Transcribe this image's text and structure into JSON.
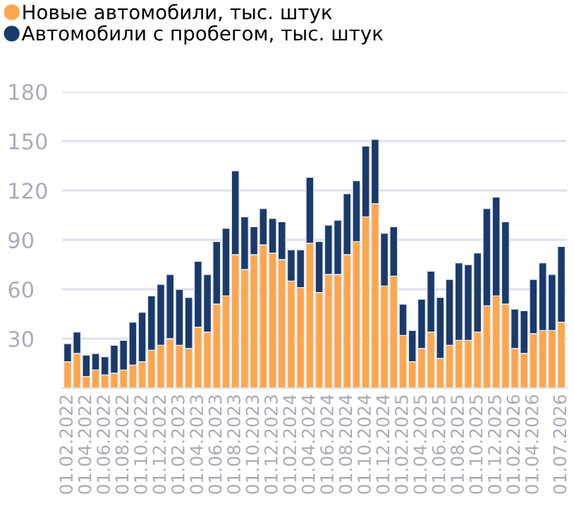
{
  "chart_data": {
    "type": "bar",
    "stacked": true,
    "categories": [
      "01.02.2022",
      null,
      "01.04.2022",
      null,
      "01.06.2022",
      null,
      "01.08.2022",
      null,
      "01.10.2022",
      null,
      "01.12.2022",
      null,
      "01.02.2023",
      null,
      "01.04.2023",
      null,
      "01.06.2023",
      null,
      "01.08.2023",
      null,
      "01.10.2023",
      null,
      "01.12.2023",
      null,
      "01.02.2024",
      null,
      "01.04.2024",
      null,
      "01.06.2024",
      null,
      "01.08.2024",
      null,
      "01.10.2024",
      null,
      "01.12.2024",
      null,
      "01.02.2025",
      null,
      "01.04.2025",
      null,
      "01.06.2025",
      null,
      "01.08.2025",
      null,
      "01.10.2025",
      null,
      "01.12.2025",
      null,
      "01.02.2026",
      null,
      "01.04.2026",
      null,
      null,
      "01.07.2026"
    ],
    "series": [
      {
        "name": "Новые автомобили, тыс. штук",
        "color": "#ffa64d",
        "values": [
          16,
          21,
          7,
          11,
          8,
          9,
          11,
          14,
          16,
          23,
          26,
          30,
          26,
          24,
          37,
          34,
          51,
          56,
          81,
          72,
          81,
          87,
          82,
          78,
          65,
          61,
          88,
          58,
          69,
          69,
          81,
          89,
          104,
          112,
          62,
          68,
          32,
          16,
          24,
          34,
          18,
          26,
          29,
          29,
          34,
          50,
          56,
          51,
          24,
          21,
          33,
          35,
          35,
          40
        ]
      },
      {
        "name": "Автомобили с пробегом, тыс. штук",
        "color": "#1a3a6b",
        "values": [
          11,
          13,
          13,
          10,
          11,
          17,
          18,
          26,
          30,
          33,
          37,
          39,
          34,
          31,
          40,
          35,
          38,
          41,
          51,
          32,
          17,
          22,
          21,
          23,
          19,
          23,
          40,
          31,
          30,
          33,
          37,
          37,
          43,
          39,
          32,
          30,
          19,
          19,
          30,
          37,
          37,
          40,
          47,
          46,
          48,
          59,
          60,
          50,
          24,
          26,
          33,
          41,
          34,
          46
        ]
      }
    ],
    "ylim": [
      0,
      180
    ],
    "yticks": [
      30,
      60,
      90,
      120,
      150,
      180
    ],
    "grid": "y",
    "legend": "top left"
  }
}
